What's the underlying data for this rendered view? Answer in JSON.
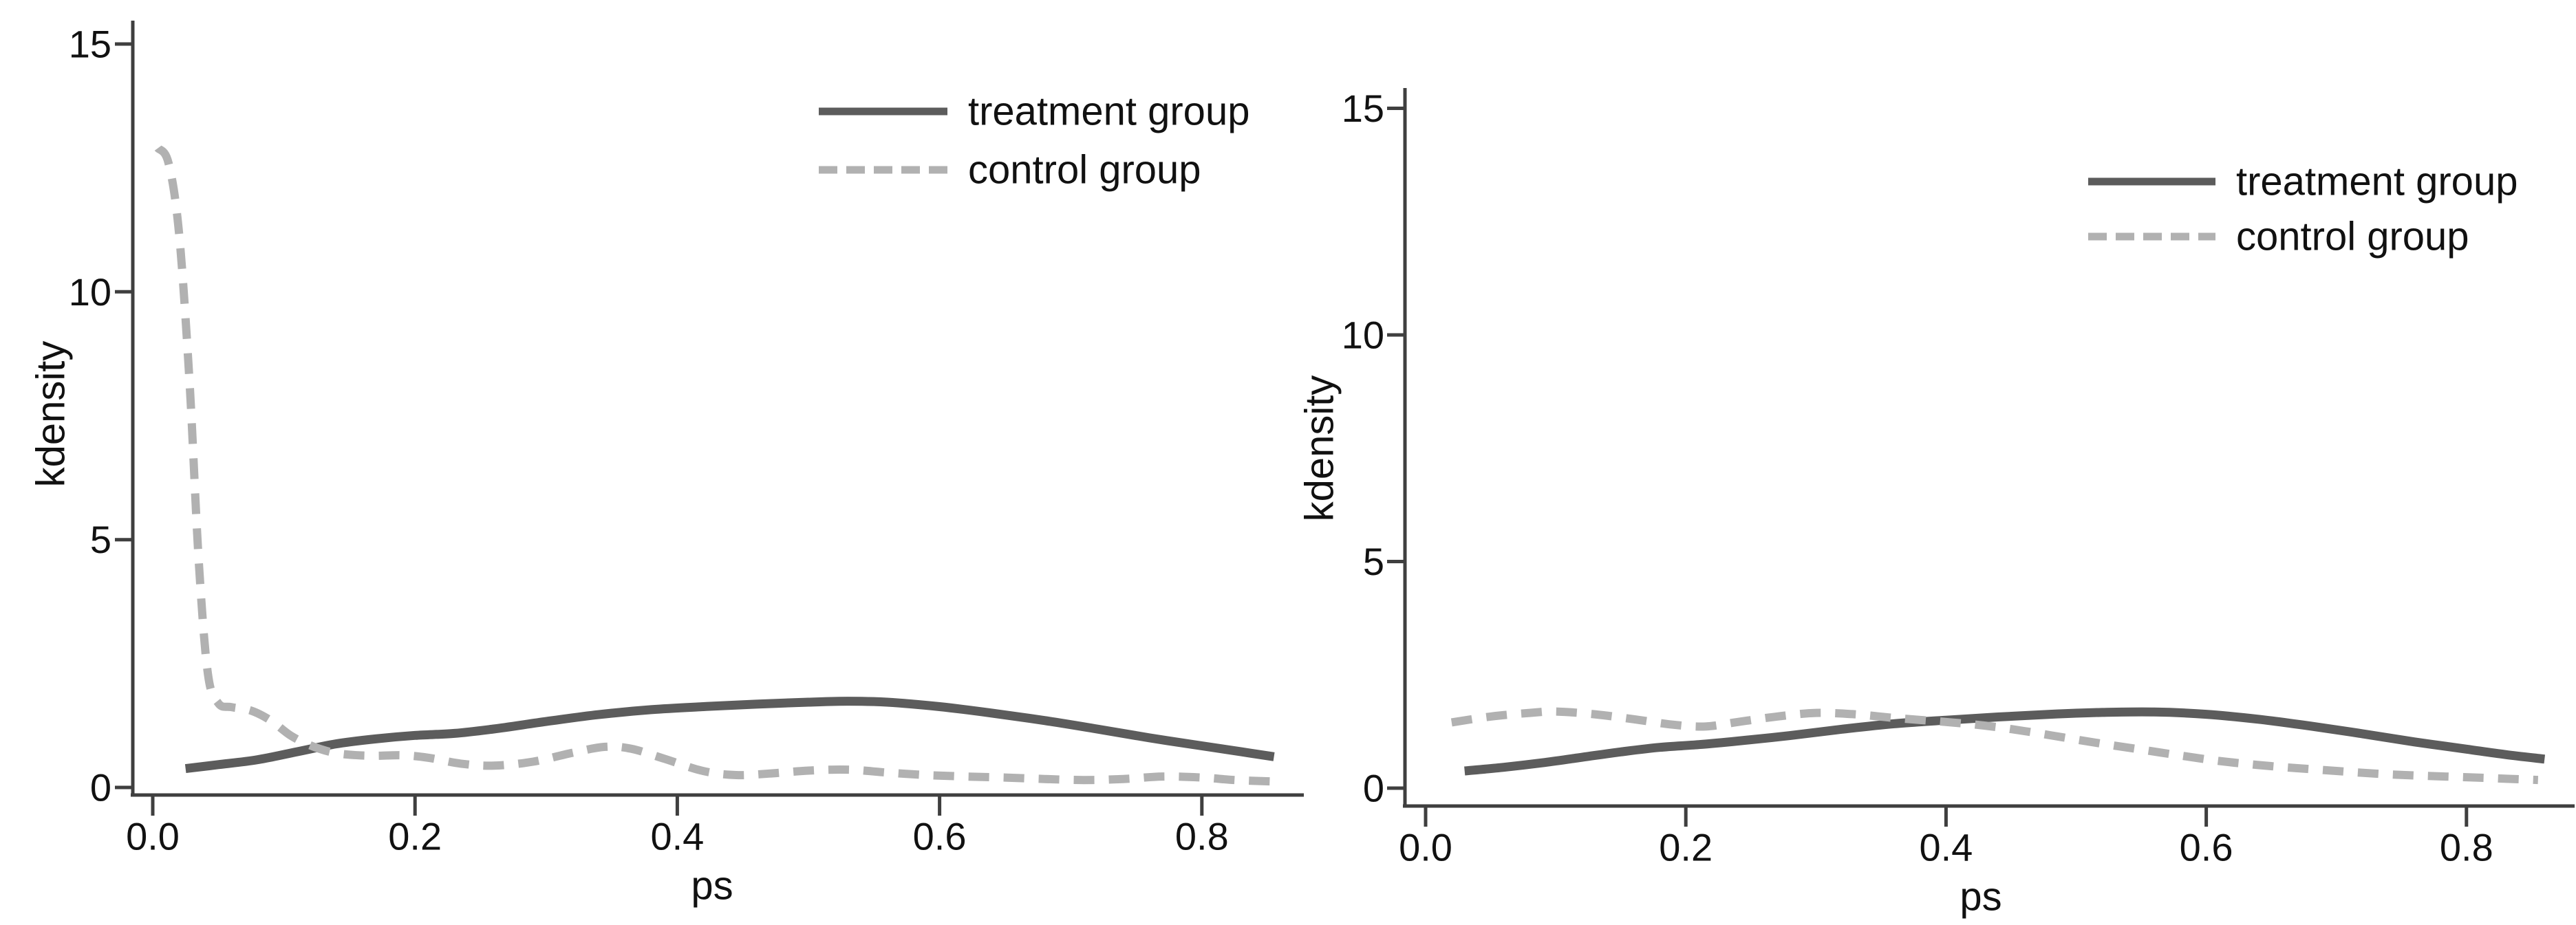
{
  "figure": {
    "description": "Two side-by-side kernel density plots of propensity scores for treatment and control groups",
    "colors": {
      "treatment_line": "#5c5c5c",
      "control_line": "#b1b1b1",
      "axis": "#3f3f3f",
      "text": "#111111",
      "background": "#ffffff"
    }
  },
  "chart_data": [
    {
      "id": "left-panel",
      "type": "line",
      "title": "",
      "xlabel": "ps",
      "ylabel": "kdensity",
      "xlim": [
        -0.015,
        0.88
      ],
      "ylim": [
        -0.17,
        15.6
      ],
      "xticks": [
        0.0,
        0.2,
        0.4,
        0.6,
        0.8
      ],
      "xtick_labels": [
        "0.0",
        "0.2",
        "0.4",
        "0.6",
        "0.8"
      ],
      "yticks": [
        0,
        5,
        10,
        15
      ],
      "ytick_labels": [
        "0",
        "5",
        "10",
        "15"
      ],
      "grid": false,
      "legend_position": "inside upper right",
      "legend": [
        {
          "label": "treatment group",
          "style": "solid"
        },
        {
          "label": "control group",
          "style": "dashed"
        }
      ],
      "series": [
        {
          "name": "treatment group",
          "style": "solid",
          "color": "#5c5c5c",
          "points": [
            [
              0.025,
              0.38
            ],
            [
              0.05,
              0.46
            ],
            [
              0.08,
              0.56
            ],
            [
              0.11,
              0.72
            ],
            [
              0.14,
              0.88
            ],
            [
              0.17,
              0.98
            ],
            [
              0.2,
              1.05
            ],
            [
              0.23,
              1.09
            ],
            [
              0.26,
              1.18
            ],
            [
              0.3,
              1.33
            ],
            [
              0.34,
              1.47
            ],
            [
              0.38,
              1.57
            ],
            [
              0.42,
              1.63
            ],
            [
              0.46,
              1.68
            ],
            [
              0.5,
              1.72
            ],
            [
              0.53,
              1.74
            ],
            [
              0.56,
              1.72
            ],
            [
              0.6,
              1.63
            ],
            [
              0.64,
              1.5
            ],
            [
              0.68,
              1.35
            ],
            [
              0.72,
              1.18
            ],
            [
              0.76,
              1.0
            ],
            [
              0.8,
              0.84
            ],
            [
              0.83,
              0.72
            ],
            [
              0.855,
              0.62
            ]
          ]
        },
        {
          "name": "control group",
          "style": "dashed",
          "color": "#b1b1b1",
          "points": [
            [
              0.004,
              12.9
            ],
            [
              0.012,
              12.6
            ],
            [
              0.02,
              11.2
            ],
            [
              0.028,
              8.2
            ],
            [
              0.035,
              4.6
            ],
            [
              0.042,
              2.3
            ],
            [
              0.05,
              1.7
            ],
            [
              0.06,
              1.62
            ],
            [
              0.075,
              1.55
            ],
            [
              0.09,
              1.35
            ],
            [
              0.105,
              1.05
            ],
            [
              0.12,
              0.85
            ],
            [
              0.135,
              0.72
            ],
            [
              0.15,
              0.66
            ],
            [
              0.17,
              0.64
            ],
            [
              0.19,
              0.65
            ],
            [
              0.21,
              0.6
            ],
            [
              0.235,
              0.48
            ],
            [
              0.26,
              0.44
            ],
            [
              0.29,
              0.52
            ],
            [
              0.32,
              0.7
            ],
            [
              0.345,
              0.82
            ],
            [
              0.365,
              0.78
            ],
            [
              0.39,
              0.58
            ],
            [
              0.42,
              0.33
            ],
            [
              0.445,
              0.25
            ],
            [
              0.47,
              0.28
            ],
            [
              0.5,
              0.34
            ],
            [
              0.53,
              0.36
            ],
            [
              0.56,
              0.3
            ],
            [
              0.59,
              0.25
            ],
            [
              0.62,
              0.22
            ],
            [
              0.65,
              0.2
            ],
            [
              0.68,
              0.17
            ],
            [
              0.71,
              0.15
            ],
            [
              0.74,
              0.17
            ],
            [
              0.77,
              0.22
            ],
            [
              0.8,
              0.2
            ],
            [
              0.825,
              0.15
            ],
            [
              0.855,
              0.12
            ]
          ]
        }
      ]
    },
    {
      "id": "right-panel",
      "type": "line",
      "title": "",
      "xlabel": "ps",
      "ylabel": "kdensity",
      "xlim": [
        -0.016,
        0.885
      ],
      "ylim": [
        -0.4,
        15.5
      ],
      "xticks": [
        0.0,
        0.2,
        0.4,
        0.6,
        0.8
      ],
      "xtick_labels": [
        "0.0",
        "0.2",
        "0.4",
        "0.6",
        "0.8"
      ],
      "yticks": [
        0,
        5,
        10,
        15
      ],
      "ytick_labels": [
        "0",
        "5",
        "10",
        "15"
      ],
      "grid": false,
      "legend_position": "inside upper right",
      "legend": [
        {
          "label": "treatment group",
          "style": "solid"
        },
        {
          "label": "control group",
          "style": "dashed"
        }
      ],
      "series": [
        {
          "name": "treatment group",
          "style": "solid",
          "color": "#5c5c5c",
          "points": [
            [
              0.03,
              0.38
            ],
            [
              0.06,
              0.46
            ],
            [
              0.09,
              0.56
            ],
            [
              0.12,
              0.68
            ],
            [
              0.15,
              0.8
            ],
            [
              0.18,
              0.9
            ],
            [
              0.21,
              0.96
            ],
            [
              0.24,
              1.04
            ],
            [
              0.28,
              1.16
            ],
            [
              0.32,
              1.3
            ],
            [
              0.36,
              1.42
            ],
            [
              0.4,
              1.5
            ],
            [
              0.44,
              1.57
            ],
            [
              0.48,
              1.63
            ],
            [
              0.52,
              1.67
            ],
            [
              0.56,
              1.68
            ],
            [
              0.6,
              1.63
            ],
            [
              0.64,
              1.52
            ],
            [
              0.68,
              1.37
            ],
            [
              0.72,
              1.2
            ],
            [
              0.76,
              1.02
            ],
            [
              0.8,
              0.86
            ],
            [
              0.83,
              0.74
            ],
            [
              0.86,
              0.64
            ]
          ]
        },
        {
          "name": "control group",
          "style": "dashed",
          "color": "#b1b1b1",
          "points": [
            [
              0.02,
              1.45
            ],
            [
              0.05,
              1.58
            ],
            [
              0.08,
              1.66
            ],
            [
              0.1,
              1.69
            ],
            [
              0.13,
              1.63
            ],
            [
              0.16,
              1.52
            ],
            [
              0.19,
              1.4
            ],
            [
              0.215,
              1.36
            ],
            [
              0.24,
              1.46
            ],
            [
              0.27,
              1.58
            ],
            [
              0.3,
              1.66
            ],
            [
              0.33,
              1.63
            ],
            [
              0.36,
              1.55
            ],
            [
              0.4,
              1.46
            ],
            [
              0.43,
              1.38
            ],
            [
              0.46,
              1.26
            ],
            [
              0.49,
              1.12
            ],
            [
              0.52,
              0.98
            ],
            [
              0.55,
              0.85
            ],
            [
              0.58,
              0.72
            ],
            [
              0.61,
              0.6
            ],
            [
              0.64,
              0.51
            ],
            [
              0.67,
              0.44
            ],
            [
              0.7,
              0.38
            ],
            [
              0.73,
              0.32
            ],
            [
              0.76,
              0.28
            ],
            [
              0.79,
              0.25
            ],
            [
              0.82,
              0.22
            ],
            [
              0.855,
              0.18
            ]
          ]
        }
      ]
    }
  ]
}
